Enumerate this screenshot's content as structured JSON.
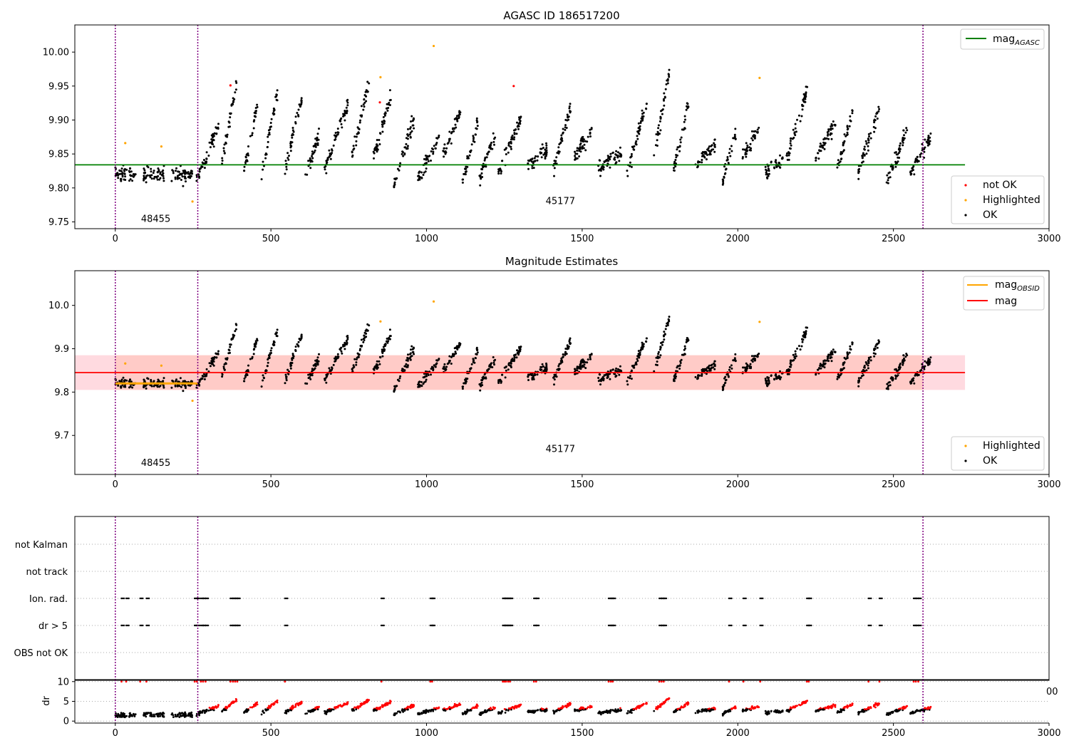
{
  "colors": {
    "ok": "#000000",
    "highlighted": "#ffa500",
    "not_ok": "#ff0000",
    "agasc_line": "#008000",
    "mag_line": "#ff0000",
    "obsid_line": "#ffa500",
    "obs_line": "#800080",
    "band": "#ffb6c1"
  },
  "chart_data": [
    {
      "type": "scatter",
      "title": "AGASC ID 186517200",
      "xlim": [
        -130,
        3000
      ],
      "ylim": [
        9.74,
        10.04
      ],
      "xticks": [
        "0",
        "500",
        "1000",
        "1500",
        "2000",
        "2500",
        "3000"
      ],
      "yticks": [
        "9.75",
        "9.80",
        "9.85",
        "9.90",
        "9.95",
        "10.00"
      ],
      "obs_boundaries": [
        0,
        265,
        2595
      ],
      "obs_labels": [
        {
          "text": "48455",
          "x": 130,
          "y": 9.75
        },
        {
          "text": "45177",
          "x": 1430,
          "y": 9.776
        }
      ],
      "hline": {
        "y": 9.834,
        "x_range": [
          -130,
          2730
        ]
      },
      "legend_upper": [
        "mag",
        "AGASC"
      ],
      "legend_lower": [
        "not OK",
        "Highlighted",
        "OK"
      ],
      "highlighted_points": [
        [
          32,
          9.866
        ],
        [
          148,
          9.861
        ],
        [
          248,
          9.78
        ],
        [
          852,
          9.963
        ],
        [
          1023,
          10.009
        ],
        [
          2070,
          9.962
        ]
      ],
      "not_ok_points": [
        [
          370,
          9.951
        ],
        [
          850,
          9.926
        ],
        [
          1280,
          9.95
        ]
      ]
    },
    {
      "type": "scatter",
      "title": "Magnitude Estimates",
      "xlim": [
        -130,
        3000
      ],
      "ylim": [
        9.61,
        10.08
      ],
      "xticks": [
        "0",
        "500",
        "1000",
        "1500",
        "2000",
        "2500",
        "3000"
      ],
      "yticks": [
        "9.7",
        "9.8",
        "9.9",
        "10.0"
      ],
      "obs_boundaries": [
        0,
        265,
        2595
      ],
      "obs_labels": [
        {
          "text": "48455",
          "x": 130,
          "y": 9.63
        },
        {
          "text": "45177",
          "x": 1430,
          "y": 9.662
        }
      ],
      "mag_line": {
        "y": 9.845,
        "x_range": [
          -130,
          2730
        ],
        "band": [
          9.805,
          9.885
        ]
      },
      "obsid_line": {
        "y": 9.82,
        "x_range": [
          0,
          265
        ]
      },
      "legend_upper": [
        "mag",
        "OBSID",
        "mag"
      ],
      "legend_lower": [
        "Highlighted",
        "OK"
      ],
      "highlighted_points": [
        [
          32,
          9.866
        ],
        [
          148,
          9.861
        ],
        [
          248,
          9.78
        ],
        [
          852,
          9.963
        ],
        [
          1023,
          10.009
        ],
        [
          2070,
          9.962
        ]
      ]
    },
    {
      "type": "scatter",
      "xlim": [
        -130,
        3000
      ],
      "categories": [
        "not Kalman",
        "not track",
        "Ion. rad.",
        "dr > 5",
        "OBS not OK"
      ],
      "flag_times": [
        20,
        35,
        80,
        100,
        255,
        262,
        275,
        282,
        290,
        370,
        378,
        385,
        392,
        545,
        855,
        1012,
        1018,
        1245,
        1250,
        1255,
        1262,
        1268,
        1345,
        1352,
        1585,
        1592,
        1598,
        1748,
        1755,
        1762,
        1972,
        2018,
        2072,
        2222,
        2228,
        2420,
        2455,
        2565,
        2572,
        2580
      ],
      "obs_boundaries": [
        0,
        265,
        2595
      ]
    },
    {
      "type": "scatter",
      "ylabel": "dr",
      "xlim": [
        -130,
        3000
      ],
      "ylim": [
        -0.5,
        10.5
      ],
      "xticks": [
        "0",
        "500",
        "1000",
        "1500",
        "2000",
        "2500",
        "3000"
      ],
      "yticks": [
        "0",
        "5",
        "10"
      ],
      "obs_boundaries": [
        0,
        265,
        2595
      ],
      "clipped_label": "00"
    }
  ]
}
